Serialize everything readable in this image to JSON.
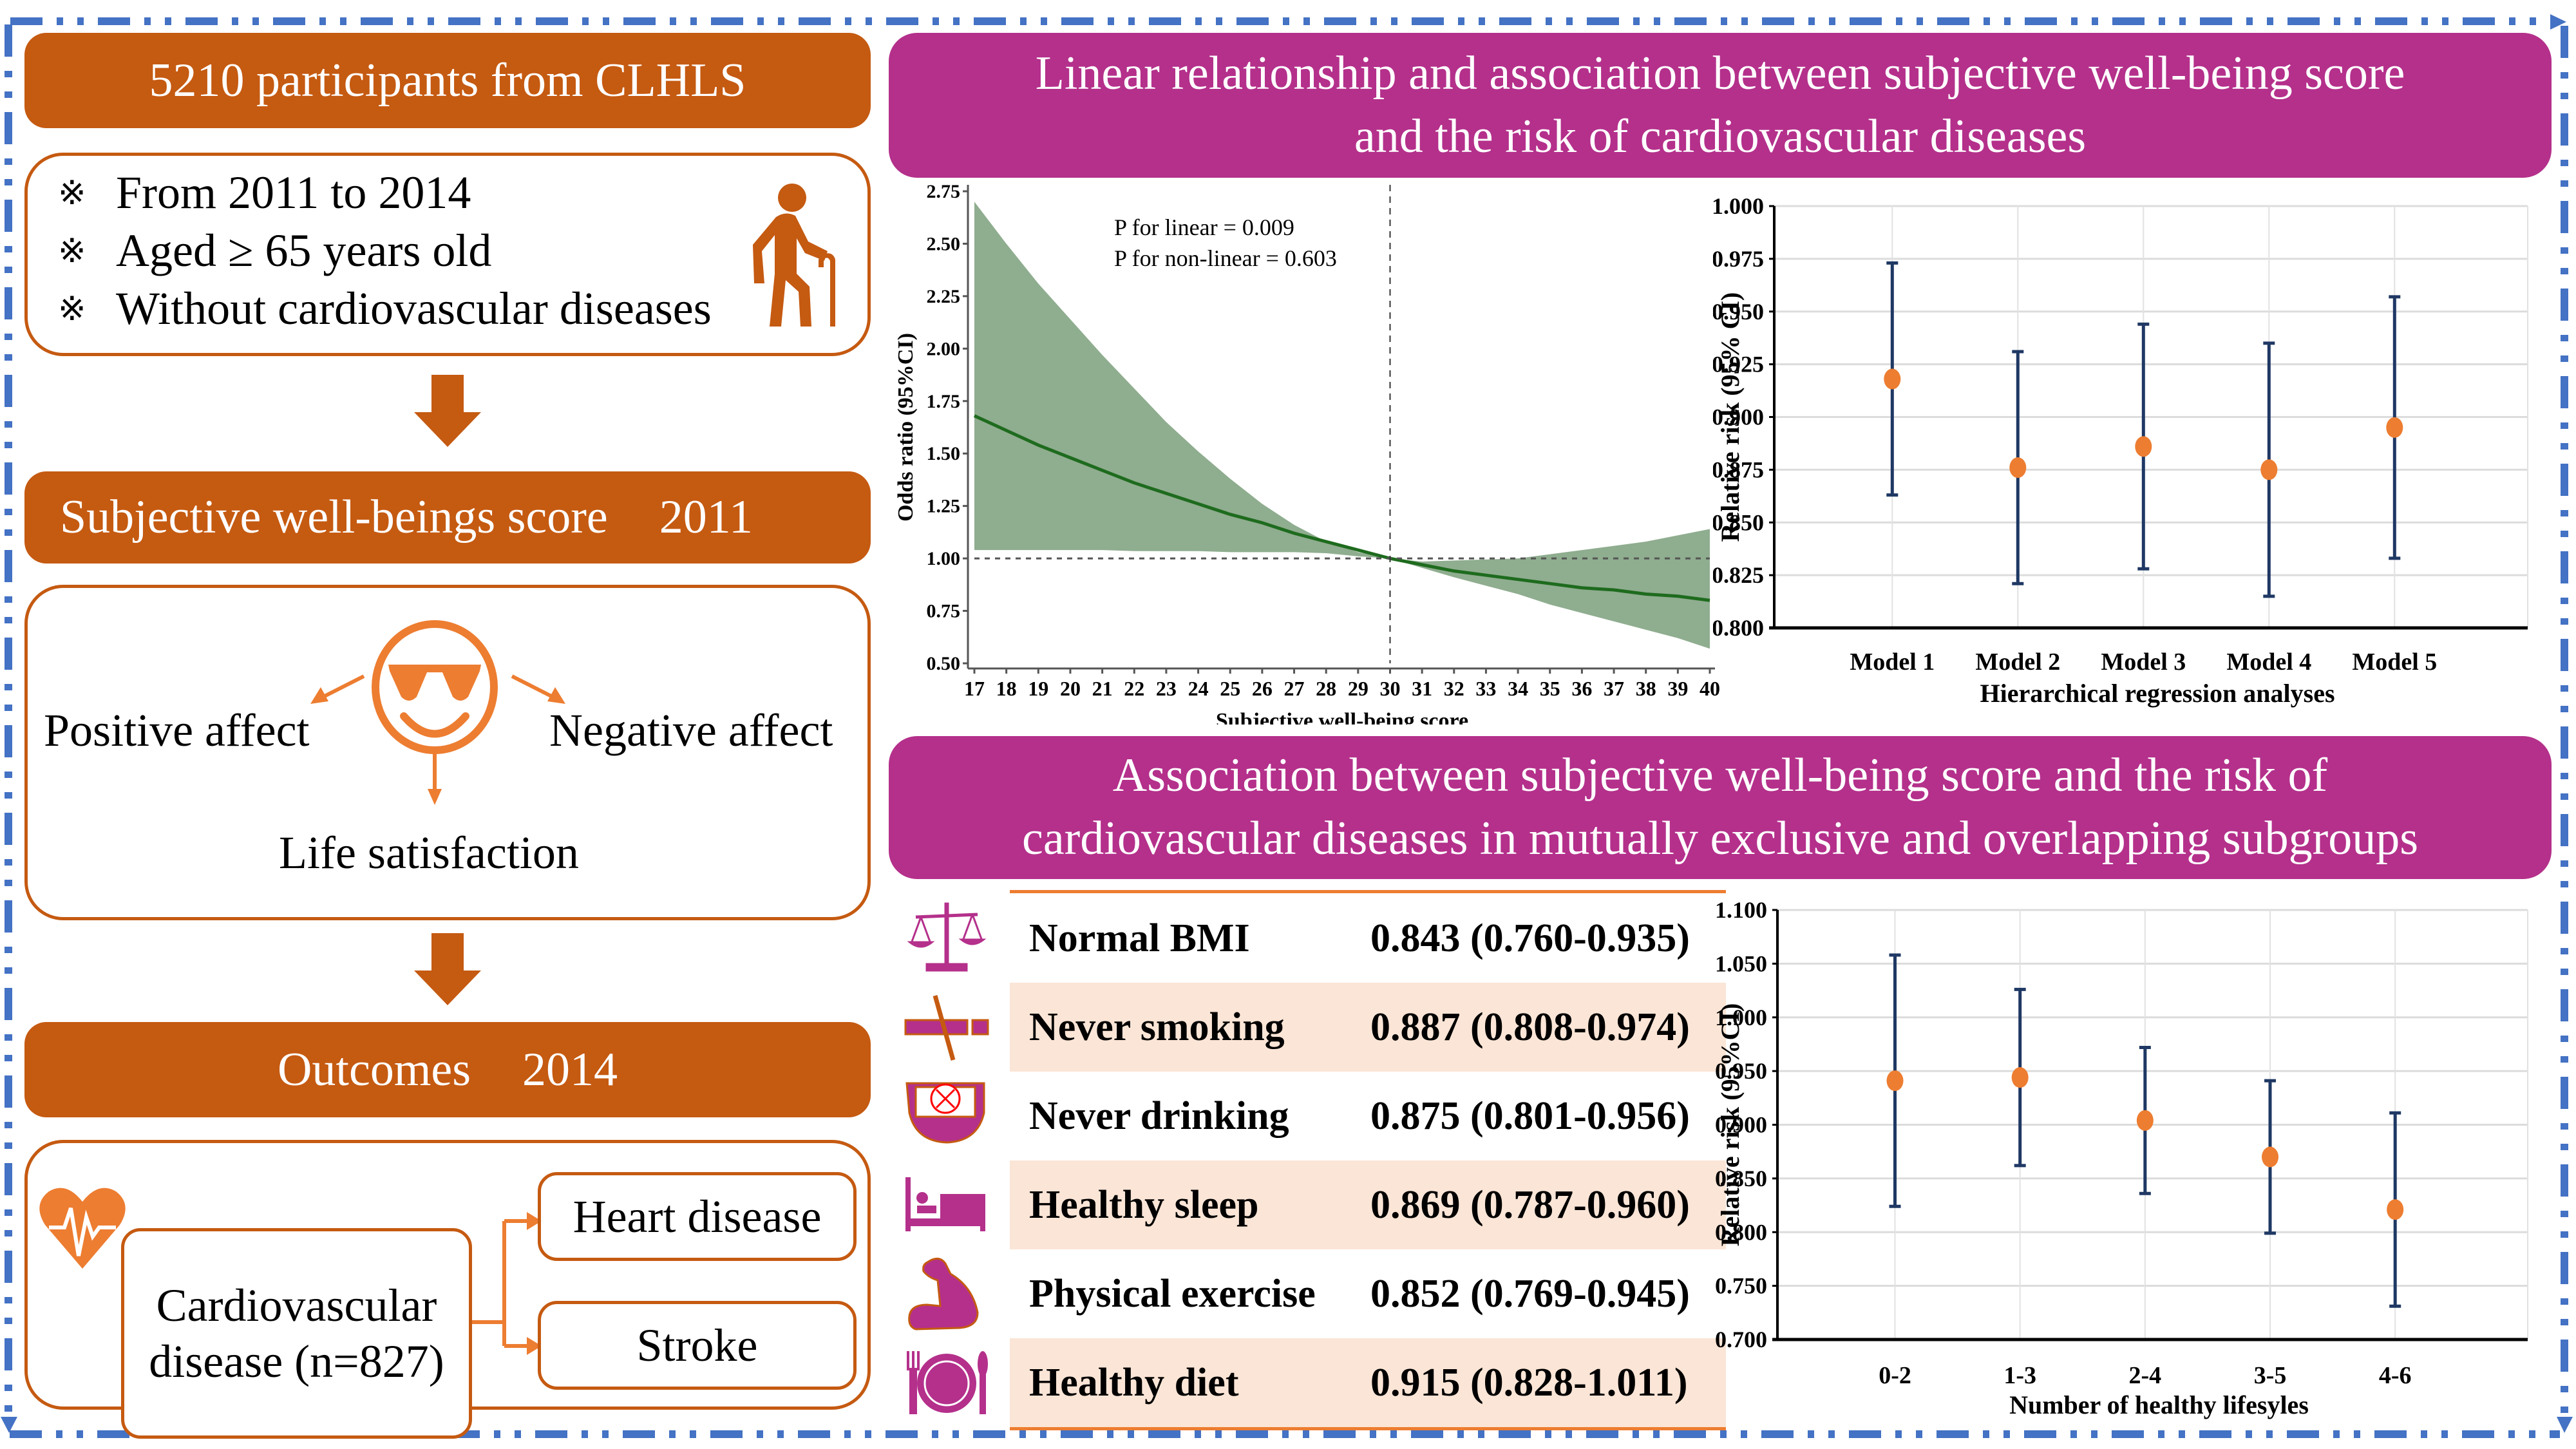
{
  "left_column": {
    "cohort_title": "5210 participants from CLHLS",
    "criteria_marker": "※",
    "criteria": [
      "From 2011 to 2014",
      "Aged ≥ 65 years old",
      "Without cardiovascular diseases"
    ],
    "exposure_title": "Subjective well-beings score",
    "exposure_year": "2011",
    "swb_components": {
      "left": "Positive affect",
      "right": "Negative affect",
      "bottom": "Life satisfaction"
    },
    "outcome_title": "Outcomes",
    "outcome_year": "2014",
    "cvd_label_line1": "Cardiovascular",
    "cvd_label_line2": "disease (n=827)",
    "outcome_branches": [
      "Heart disease",
      "Stroke"
    ]
  },
  "right_column": {
    "header_top_line1": "Linear relationship and association between subjective well-being score",
    "header_top_line2": "and the risk of cardiovascular diseases",
    "header_bottom_line1": "Association between subjective well-being score and the risk of",
    "header_bottom_line2": "cardiovascular diseases in mutually exclusive and overlapping subgroups",
    "subgroup_table": [
      {
        "icon": "balance-scale-icon",
        "name": "Normal BMI",
        "value": "0.843 (0.760-0.935)",
        "shaded": false
      },
      {
        "icon": "no-smoking-icon",
        "name": "Never smoking",
        "value": "0.887 (0.808-0.974)",
        "shaded": true
      },
      {
        "icon": "no-drinking-icon",
        "name": "Never drinking",
        "value": "0.875 (0.801-0.956)",
        "shaded": false
      },
      {
        "icon": "bed-icon",
        "name": "Healthy sleep",
        "value": "0.869 (0.787-0.960)",
        "shaded": true
      },
      {
        "icon": "flexed-arm-icon",
        "name": "Physical exercise",
        "value": "0.852 (0.769-0.945)",
        "shaded": false
      },
      {
        "icon": "plate-cutlery-icon",
        "name": "Healthy diet",
        "value": "0.915 (0.828-1.011)",
        "shaded": true
      }
    ]
  },
  "colors": {
    "orange": "#c55a11",
    "light_orange": "#ed7d31",
    "purple": "#b4308b",
    "frame_blue": "#4472c4",
    "band_green": "#8fad8f",
    "line_green": "#1e6b1e",
    "errorbar_navy": "#1f3864",
    "point_orange": "#ed7d31",
    "row_shade": "#fbe5d6"
  },
  "chart_data": [
    {
      "type": "area",
      "title": "",
      "xlabel": "Subjective well-being score",
      "ylabel": "Odds ratio (95%CI)",
      "xlim": [
        17,
        40
      ],
      "ylim": [
        0.5,
        2.75
      ],
      "x_ticks": [
        17,
        18,
        19,
        20,
        21,
        22,
        23,
        24,
        25,
        26,
        27,
        28,
        29,
        30,
        31,
        32,
        33,
        34,
        35,
        36,
        37,
        38,
        39,
        40
      ],
      "y_ticks": [
        "0.50",
        "0.75",
        "1.00",
        "1.25",
        "1.50",
        "1.75",
        "2.00",
        "2.25",
        "2.50",
        "2.75"
      ],
      "annotations": [
        "P for linear = 0.009",
        "P for non-linear = 0.603"
      ],
      "reference_x": 30,
      "reference_y": 1.0,
      "x": [
        17,
        18,
        19,
        20,
        21,
        22,
        23,
        24,
        25,
        26,
        27,
        28,
        29,
        30,
        31,
        32,
        33,
        34,
        35,
        36,
        37,
        38,
        39,
        40
      ],
      "series": [
        {
          "name": "Odds ratio",
          "values": [
            1.68,
            1.61,
            1.54,
            1.48,
            1.42,
            1.36,
            1.31,
            1.26,
            1.21,
            1.17,
            1.12,
            1.08,
            1.04,
            1.0,
            0.97,
            0.94,
            0.92,
            0.9,
            0.88,
            0.86,
            0.85,
            0.83,
            0.82,
            0.8
          ]
        },
        {
          "name": "Upper 95% CI",
          "values": [
            2.7,
            2.5,
            2.31,
            2.14,
            1.97,
            1.81,
            1.65,
            1.51,
            1.38,
            1.26,
            1.16,
            1.08,
            1.03,
            1.0,
            0.985,
            0.99,
            0.995,
            1.0,
            1.02,
            1.04,
            1.06,
            1.08,
            1.11,
            1.14
          ]
        },
        {
          "name": "Lower 95% CI",
          "values": [
            1.04,
            1.04,
            1.04,
            1.04,
            1.04,
            1.035,
            1.035,
            1.035,
            1.03,
            1.03,
            1.03,
            1.025,
            1.01,
            1.0,
            0.955,
            0.91,
            0.87,
            0.83,
            0.78,
            0.74,
            0.7,
            0.66,
            0.62,
            0.57
          ]
        }
      ]
    },
    {
      "type": "scatter",
      "title": "",
      "xlabel": "Hierarchical regression analyses",
      "ylabel": "Relative risk (95% CI)",
      "categories": [
        "Model 1",
        "Model 2",
        "Model 3",
        "Model 4",
        "Model 5"
      ],
      "ylim": [
        0.8,
        1.0
      ],
      "y_ticks": [
        "0.800",
        "0.825",
        "0.850",
        "0.875",
        "0.900",
        "0.925",
        "0.950",
        "0.975",
        "1.000"
      ],
      "grid": true,
      "values": [
        0.918,
        0.876,
        0.886,
        0.875,
        0.895
      ],
      "lower": [
        0.863,
        0.821,
        0.828,
        0.815,
        0.833
      ],
      "upper": [
        0.973,
        0.931,
        0.944,
        0.935,
        0.957
      ]
    },
    {
      "type": "scatter",
      "title": "",
      "xlabel": "Number of healthy lifesyles",
      "ylabel": "Relative risk (95%CI)",
      "categories": [
        "0-2",
        "1-3",
        "2-4",
        "3-5",
        "4-6"
      ],
      "ylim": [
        0.7,
        1.1
      ],
      "y_ticks": [
        "0.700",
        "0.750",
        "0.800",
        "0.850",
        "0.900",
        "0.950",
        "1.000",
        "1.050",
        "1.100"
      ],
      "grid": true,
      "values": [
        0.941,
        0.944,
        0.904,
        0.87,
        0.821
      ],
      "lower": [
        0.824,
        0.862,
        0.836,
        0.799,
        0.731
      ],
      "upper": [
        1.058,
        1.026,
        0.972,
        0.941,
        0.911
      ]
    }
  ]
}
